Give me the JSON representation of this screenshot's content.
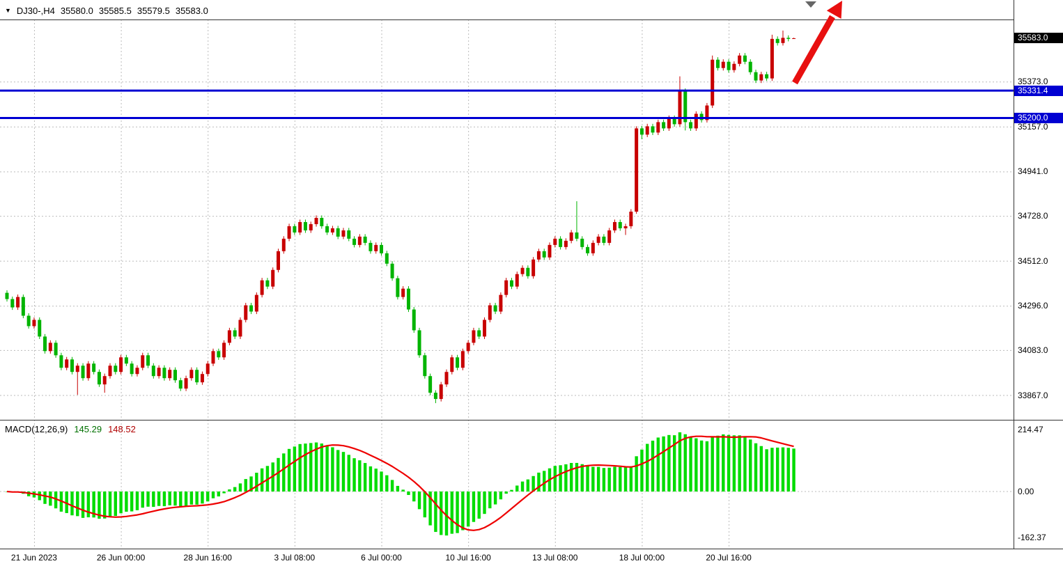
{
  "header": {
    "collapse_icon": "▼",
    "symbol_period": "DJ30-,H4",
    "open": "35580.0",
    "high": "35585.5",
    "low": "35579.5",
    "close": "35583.0"
  },
  "macd_header": {
    "name": "MACD(12,26,9)",
    "value_main": "145.29",
    "value_signal": "148.52"
  },
  "colors": {
    "up": "#c80000",
    "down": "#00b400",
    "macd_hist": "#00dc00",
    "macd_signal": "#ee0000",
    "hline": "#0000d2",
    "grid": "#bbbbbb",
    "arrow": "#e81010",
    "border": "#333333",
    "current_box": "#000000"
  },
  "chart_data": {
    "type": "candlestick",
    "symbol": "DJ30-",
    "timeframe": "H4",
    "title": "DJ30-,H4 35580.0 35585.5 35579.5 35583.0",
    "ylim": [
      33750,
      35740
    ],
    "price_gridlines": [
      35373.0,
      35157.0,
      34941.0,
      34728.0,
      34512.0,
      34296.0,
      34083.0,
      33867.0
    ],
    "current_price": 35583.0,
    "horizontal_lines": [
      {
        "price": 35331.4,
        "label": "35331.4"
      },
      {
        "price": 35200.0,
        "label": "35200.0"
      }
    ],
    "time_labels": [
      {
        "text": "21 Jun 2023",
        "index": 5
      },
      {
        "text": "26 Jun 00:00",
        "index": 21
      },
      {
        "text": "28 Jun 16:00",
        "index": 37
      },
      {
        "text": "3 Jul 08:00",
        "index": 53
      },
      {
        "text": "6 Jul 00:00",
        "index": 69
      },
      {
        "text": "10 Jul 16:00",
        "index": 85
      },
      {
        "text": "13 Jul 08:00",
        "index": 101
      },
      {
        "text": "18 Jul 00:00",
        "index": 117
      },
      {
        "text": "20 Jul 16:00",
        "index": 133
      }
    ],
    "grid_indices": [
      5,
      21,
      37,
      53,
      69,
      85,
      101,
      117,
      133
    ],
    "candles": [
      [
        34360,
        34372,
        34318,
        34330
      ],
      [
        34330,
        34342,
        34278,
        34290
      ],
      [
        34290,
        34352,
        34278,
        34340
      ],
      [
        34340,
        34352,
        34238,
        34250
      ],
      [
        34250,
        34262,
        34188,
        34200
      ],
      [
        34200,
        34242,
        34188,
        34230
      ],
      [
        34230,
        34242,
        34138,
        34150
      ],
      [
        34150,
        34162,
        34068,
        34080
      ],
      [
        34080,
        34132,
        34068,
        34120
      ],
      [
        34120,
        34132,
        34048,
        34060
      ],
      [
        34060,
        34072,
        33988,
        34000
      ],
      [
        34000,
        34052,
        33988,
        34040
      ],
      [
        34040,
        34052,
        33968,
        33980
      ],
      [
        33980,
        34022,
        33870,
        34010
      ],
      [
        34010,
        34022,
        33938,
        33950
      ],
      [
        33950,
        34032,
        33938,
        34020
      ],
      [
        34020,
        34032,
        33968,
        33980
      ],
      [
        33980,
        33992,
        33908,
        33920
      ],
      [
        33920,
        33972,
        33880,
        33960
      ],
      [
        33960,
        34022,
        33948,
        34010
      ],
      [
        34010,
        34022,
        33968,
        33980
      ],
      [
        33980,
        34062,
        33968,
        34050
      ],
      [
        34050,
        34062,
        34008,
        34020
      ],
      [
        34020,
        34032,
        33958,
        33970
      ],
      [
        33970,
        34012,
        33958,
        34000
      ],
      [
        34000,
        34072,
        33988,
        34060
      ],
      [
        34060,
        34072,
        33998,
        34010
      ],
      [
        34010,
        34022,
        33948,
        33960
      ],
      [
        33960,
        34012,
        33948,
        34000
      ],
      [
        34000,
        34012,
        33938,
        33950
      ],
      [
        33950,
        34002,
        33938,
        33990
      ],
      [
        33990,
        34002,
        33928,
        33940
      ],
      [
        33940,
        33952,
        33888,
        33900
      ],
      [
        33900,
        33962,
        33888,
        33950
      ],
      [
        33950,
        34002,
        33938,
        33990
      ],
      [
        33990,
        34002,
        33918,
        33930
      ],
      [
        33930,
        33982,
        33918,
        33970
      ],
      [
        33970,
        34032,
        33958,
        34020
      ],
      [
        34020,
        34092,
        34008,
        34080
      ],
      [
        34080,
        34092,
        34038,
        34050
      ],
      [
        34050,
        34132,
        34038,
        34120
      ],
      [
        34120,
        34192,
        34108,
        34180
      ],
      [
        34180,
        34192,
        34138,
        34150
      ],
      [
        34150,
        34242,
        34138,
        34230
      ],
      [
        34230,
        34312,
        34218,
        34300
      ],
      [
        34300,
        34312,
        34258,
        34270
      ],
      [
        34270,
        34362,
        34258,
        34350
      ],
      [
        34350,
        34432,
        34338,
        34420
      ],
      [
        34420,
        34432,
        34378,
        34390
      ],
      [
        34390,
        34482,
        34378,
        34470
      ],
      [
        34470,
        34572,
        34458,
        34560
      ],
      [
        34560,
        34632,
        34548,
        34620
      ],
      [
        34620,
        34692,
        34608,
        34680
      ],
      [
        34680,
        34692,
        34638,
        34650
      ],
      [
        34650,
        34712,
        34638,
        34700
      ],
      [
        34700,
        34712,
        34648,
        34660
      ],
      [
        34660,
        34702,
        34648,
        34690
      ],
      [
        34690,
        34732,
        34678,
        34720
      ],
      [
        34720,
        34732,
        34668,
        34680
      ],
      [
        34680,
        34692,
        34638,
        34650
      ],
      [
        34650,
        34682,
        34638,
        34670
      ],
      [
        34670,
        34682,
        34618,
        34630
      ],
      [
        34630,
        34672,
        34618,
        34660
      ],
      [
        34660,
        34672,
        34608,
        34620
      ],
      [
        34620,
        34632,
        34578,
        34590
      ],
      [
        34590,
        34642,
        34578,
        34630
      ],
      [
        34630,
        34642,
        34588,
        34600
      ],
      [
        34600,
        34612,
        34548,
        34560
      ],
      [
        34560,
        34602,
        34548,
        34590
      ],
      [
        34590,
        34602,
        34538,
        34550
      ],
      [
        34550,
        34562,
        34488,
        34500
      ],
      [
        34500,
        34512,
        34418,
        34430
      ],
      [
        34430,
        34442,
        34328,
        34340
      ],
      [
        34340,
        34392,
        34328,
        34380
      ],
      [
        34380,
        34392,
        34268,
        34280
      ],
      [
        34280,
        34292,
        34168,
        34180
      ],
      [
        34180,
        34192,
        34048,
        34060
      ],
      [
        34060,
        34072,
        33948,
        33960
      ],
      [
        33960,
        33972,
        33868,
        33880
      ],
      [
        33880,
        33892,
        33830,
        33850
      ],
      [
        33850,
        33932,
        33838,
        33920
      ],
      [
        33920,
        33992,
        33908,
        33980
      ],
      [
        33980,
        34062,
        33968,
        34050
      ],
      [
        34050,
        34062,
        33988,
        34000
      ],
      [
        34000,
        34092,
        33988,
        34080
      ],
      [
        34080,
        34132,
        34068,
        34120
      ],
      [
        34120,
        34192,
        34108,
        34180
      ],
      [
        34180,
        34192,
        34138,
        34150
      ],
      [
        34150,
        34242,
        34138,
        34230
      ],
      [
        34230,
        34312,
        34218,
        34300
      ],
      [
        34300,
        34312,
        34258,
        34270
      ],
      [
        34270,
        34362,
        34258,
        34350
      ],
      [
        34350,
        34432,
        34338,
        34420
      ],
      [
        34420,
        34432,
        34378,
        34390
      ],
      [
        34390,
        34462,
        34378,
        34450
      ],
      [
        34450,
        34492,
        34438,
        34480
      ],
      [
        34480,
        34492,
        34428,
        34440
      ],
      [
        34440,
        34532,
        34428,
        34520
      ],
      [
        34520,
        34572,
        34508,
        34560
      ],
      [
        34560,
        34572,
        34518,
        34530
      ],
      [
        34530,
        34602,
        34518,
        34590
      ],
      [
        34590,
        34632,
        34578,
        34620
      ],
      [
        34620,
        34632,
        34568,
        34580
      ],
      [
        34580,
        34622,
        34568,
        34610
      ],
      [
        34610,
        34662,
        34598,
        34650
      ],
      [
        34650,
        34800,
        34608,
        34620
      ],
      [
        34620,
        34632,
        34568,
        34580
      ],
      [
        34580,
        34592,
        34538,
        34550
      ],
      [
        34550,
        34612,
        34538,
        34600
      ],
      [
        34600,
        34642,
        34588,
        34630
      ],
      [
        34630,
        34642,
        34588,
        34600
      ],
      [
        34600,
        34672,
        34588,
        34660
      ],
      [
        34660,
        34712,
        34648,
        34700
      ],
      [
        34700,
        34712,
        34658,
        34670
      ],
      [
        34670,
        34692,
        34638,
        34680
      ],
      [
        34680,
        34762,
        34668,
        34750
      ],
      [
        34750,
        35160,
        34740,
        35150
      ],
      [
        35150,
        35162,
        35098,
        35120
      ],
      [
        35120,
        35172,
        35108,
        35160
      ],
      [
        35160,
        35172,
        35118,
        35130
      ],
      [
        35130,
        35192,
        35118,
        35180
      ],
      [
        35180,
        35192,
        35138,
        35150
      ],
      [
        35150,
        35212,
        35138,
        35200
      ],
      [
        35200,
        35212,
        35158,
        35170
      ],
      [
        35170,
        35400,
        35158,
        35330
      ],
      [
        35330,
        35342,
        35140,
        35180
      ],
      [
        35180,
        35192,
        35138,
        35150
      ],
      [
        35150,
        35232,
        35138,
        35220
      ],
      [
        35220,
        35232,
        35178,
        35190
      ],
      [
        35190,
        35272,
        35178,
        35260
      ],
      [
        35260,
        35500,
        35248,
        35480
      ],
      [
        35480,
        35492,
        35428,
        35440
      ],
      [
        35440,
        35482,
        35428,
        35470
      ],
      [
        35470,
        35482,
        35418,
        35430
      ],
      [
        35430,
        35472,
        35418,
        35460
      ],
      [
        35460,
        35512,
        35448,
        35500
      ],
      [
        35500,
        35512,
        35458,
        35470
      ],
      [
        35470,
        35482,
        35408,
        35420
      ],
      [
        35420,
        35432,
        35368,
        35380
      ],
      [
        35380,
        35422,
        35368,
        35410
      ],
      [
        35410,
        35422,
        35378,
        35390
      ],
      [
        35390,
        35600,
        35378,
        35580
      ],
      [
        35580,
        35592,
        35548,
        35560
      ],
      [
        35560,
        35620,
        35548,
        35585
      ],
      [
        35585,
        35597,
        35568,
        35580
      ],
      [
        35580,
        35585.5,
        35579.5,
        35583
      ]
    ],
    "macd": {
      "params": [
        12,
        26,
        9
      ],
      "current_main": 145.29,
      "current_signal": 148.52,
      "axis_labels": [
        "214.47",
        "0.00",
        "-162.37"
      ],
      "ylim": [
        -162.37,
        214.47
      ]
    },
    "annotations": [
      {
        "type": "arrow",
        "direction": "up-right",
        "meaning": "bullish-continuation"
      }
    ]
  }
}
